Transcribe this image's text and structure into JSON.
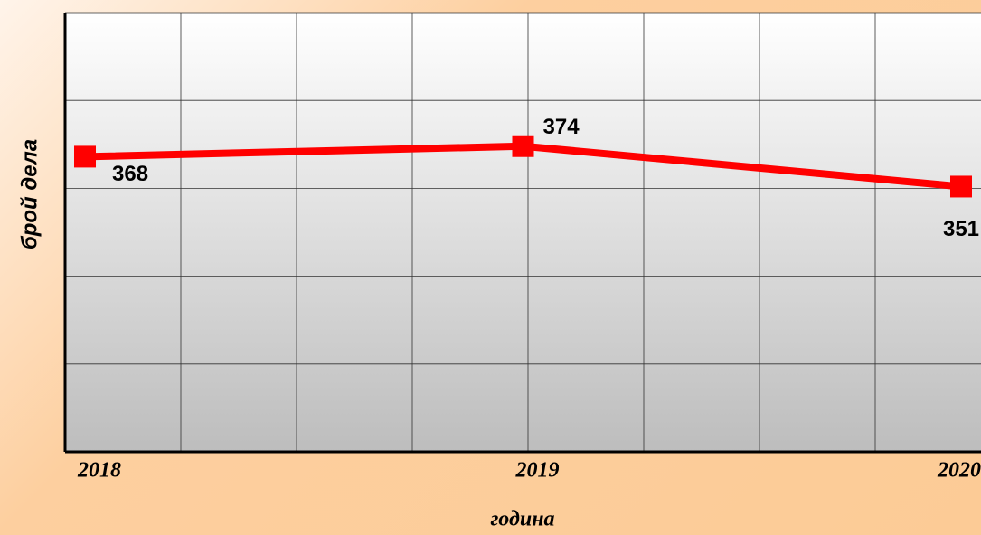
{
  "chart_data": {
    "type": "line",
    "x_label": "година",
    "y_label": "брой дела",
    "categories": [
      "2018",
      "2019",
      "2020"
    ],
    "series": [
      {
        "color": "#ff0000",
        "values": [
          368,
          374,
          351
        ]
      }
    ],
    "ylim": [
      200,
      450
    ],
    "yticks": [
      200,
      250,
      300,
      350,
      400,
      450
    ],
    "grid": true
  }
}
